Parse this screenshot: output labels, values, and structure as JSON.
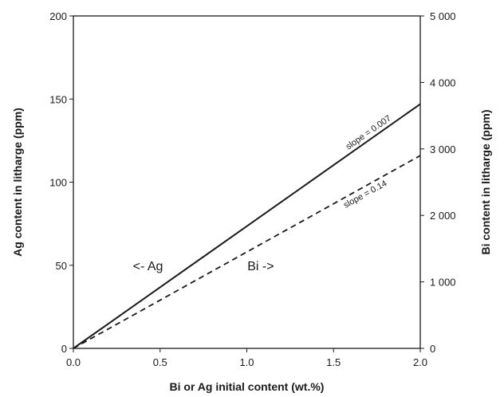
{
  "chart_data": {
    "type": "line",
    "xlabel": "Bi or Ag initial content (wt.%)",
    "ylabel_left": "Ag content in litharge (ppm)",
    "ylabel_right": "Bi content in litharge (ppm)",
    "xlim": [
      0,
      2
    ],
    "ylim_left": [
      0,
      200
    ],
    "ylim_right": [
      0,
      5000
    ],
    "x_ticks": [
      0,
      0.5,
      1,
      1.5,
      2
    ],
    "x_tick_labels": [
      "0.0",
      "0.5",
      "1.0",
      "1.5",
      "2.0"
    ],
    "y_left_ticks": [
      0,
      50,
      100,
      150,
      200
    ],
    "y_left_tick_labels": [
      "0",
      "50",
      "100",
      "150",
      "200"
    ],
    "y_right_ticks": [
      0,
      1000,
      2000,
      3000,
      4000,
      5000
    ],
    "y_right_tick_labels": [
      "0",
      "1 000",
      "2 000",
      "3 000",
      "4 000",
      "5 000"
    ],
    "grid": false,
    "series": [
      {
        "axis": "left",
        "style": "solid",
        "x": [
          0,
          2
        ],
        "y": [
          0,
          147
        ],
        "label": "slope = 0.007"
      },
      {
        "axis": "right",
        "style": "dashed",
        "x": [
          0,
          2
        ],
        "y": [
          0,
          2900
        ],
        "label": "slope = 0.14"
      }
    ],
    "annotations": [
      {
        "text": "<- Ag",
        "x": 0.43,
        "y": 47
      },
      {
        "text": "Bi ->",
        "x": 1.08,
        "y": 47
      }
    ]
  }
}
